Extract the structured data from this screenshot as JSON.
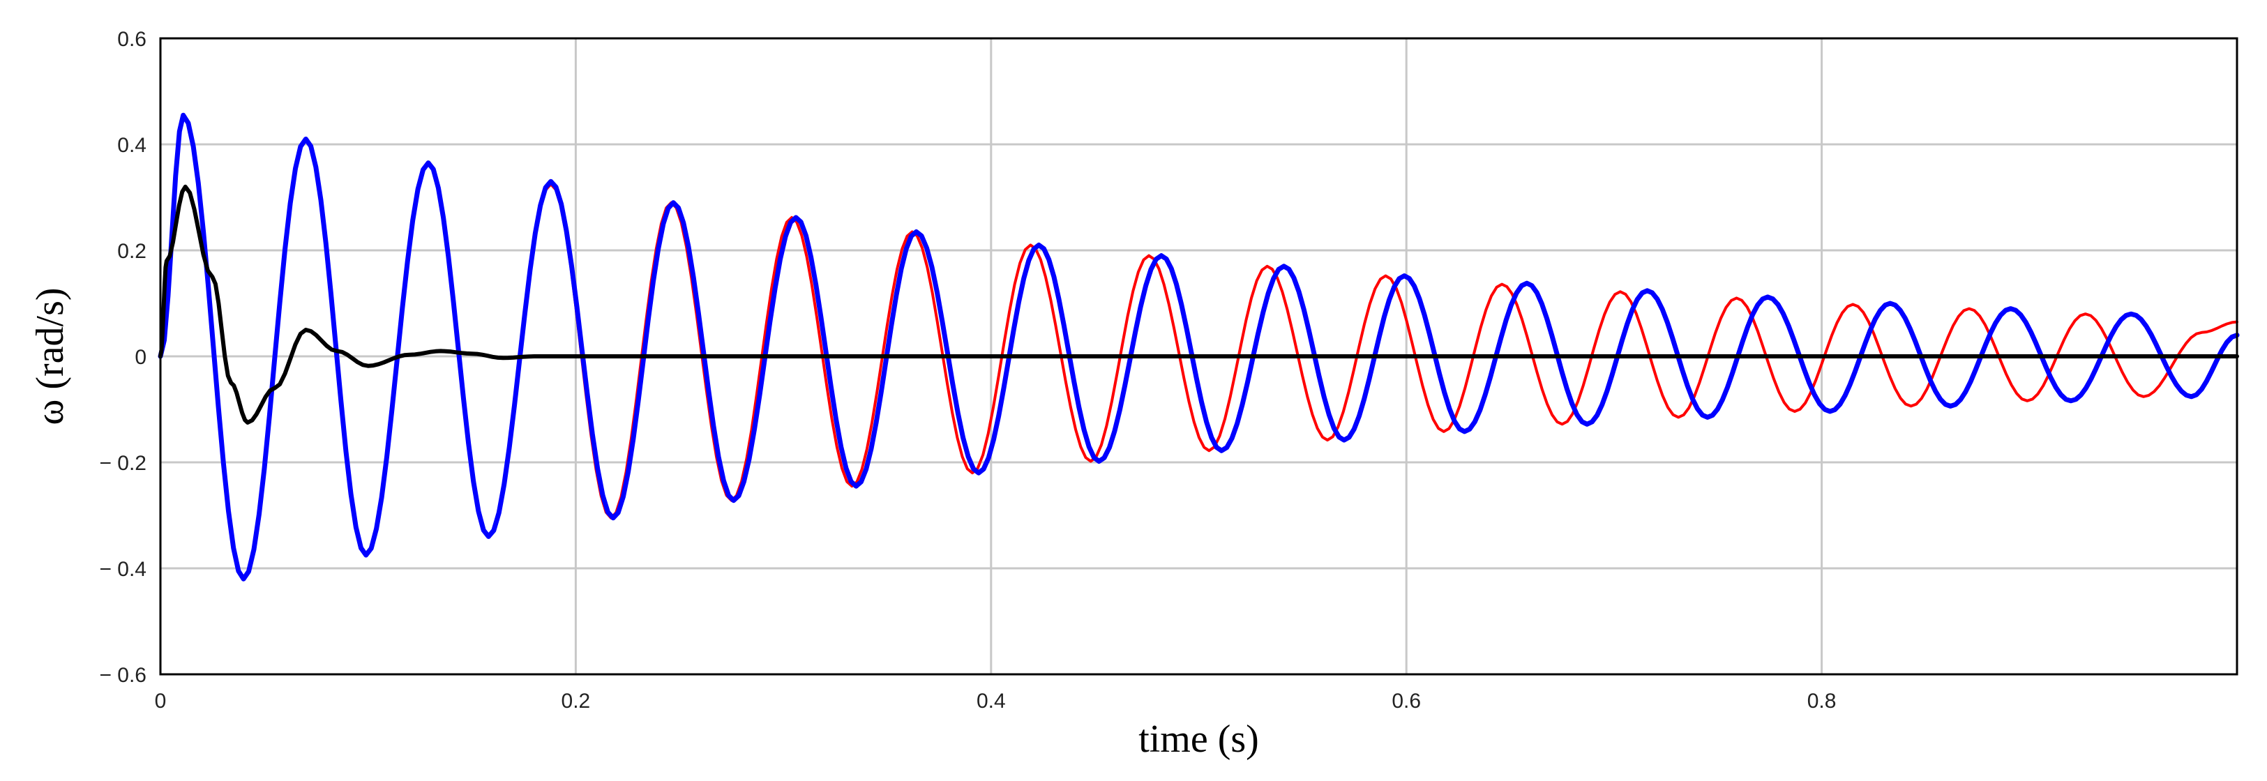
{
  "chart_data": {
    "type": "line",
    "title": "",
    "xlabel": "time (s)",
    "ylabel": "ω (rad/s)",
    "xlim": [
      0,
      1.0
    ],
    "ylim": [
      -0.6,
      0.6
    ],
    "grid": true,
    "x_ticks": [
      0,
      0.2,
      0.4,
      0.6,
      0.8
    ],
    "x_tick_labels": [
      "0",
      "0.2",
      "0.4",
      "0.6",
      "0.8"
    ],
    "y_ticks": [
      -0.6,
      -0.4,
      -0.2,
      0,
      0.2,
      0.4,
      0.6
    ],
    "y_tick_labels": [
      "− 0.6",
      "− 0.4",
      "− 0.2",
      "0",
      "0.2",
      "0.4",
      "0.6"
    ],
    "series": [
      {
        "color": "#ff0000",
        "points": [
          [
            0.0,
            0.0
          ],
          [
            0.011,
            0.455
          ],
          [
            0.04,
            -0.42
          ],
          [
            0.07,
            0.41
          ],
          [
            0.099,
            -0.375
          ],
          [
            0.129,
            0.365
          ],
          [
            0.158,
            -0.34
          ],
          [
            0.188,
            0.325
          ],
          [
            0.217,
            -0.305
          ],
          [
            0.246,
            0.29
          ],
          [
            0.275,
            -0.272
          ],
          [
            0.304,
            0.262
          ],
          [
            0.333,
            -0.245
          ],
          [
            0.362,
            0.235
          ],
          [
            0.391,
            -0.22
          ],
          [
            0.419,
            0.21
          ],
          [
            0.448,
            -0.198
          ],
          [
            0.476,
            0.19
          ],
          [
            0.505,
            -0.178
          ],
          [
            0.533,
            0.17
          ],
          [
            0.562,
            -0.158
          ],
          [
            0.59,
            0.152
          ],
          [
            0.618,
            -0.142
          ],
          [
            0.646,
            0.136
          ],
          [
            0.675,
            -0.128
          ],
          [
            0.703,
            0.122
          ],
          [
            0.731,
            -0.115
          ],
          [
            0.759,
            0.11
          ],
          [
            0.787,
            -0.104
          ],
          [
            0.815,
            0.098
          ],
          [
            0.843,
            -0.094
          ],
          [
            0.871,
            0.09
          ],
          [
            0.899,
            -0.084
          ],
          [
            0.927,
            0.08
          ],
          [
            0.955,
            -0.076
          ],
          [
            0.983,
            0.045
          ],
          [
            1.0,
            0.065
          ]
        ]
      },
      {
        "color": "#0000ff",
        "points": [
          [
            0.0,
            0.0
          ],
          [
            0.011,
            0.455
          ],
          [
            0.04,
            -0.42
          ],
          [
            0.07,
            0.41
          ],
          [
            0.099,
            -0.375
          ],
          [
            0.129,
            0.365
          ],
          [
            0.158,
            -0.34
          ],
          [
            0.188,
            0.33
          ],
          [
            0.218,
            -0.305
          ],
          [
            0.247,
            0.29
          ],
          [
            0.276,
            -0.272
          ],
          [
            0.306,
            0.262
          ],
          [
            0.335,
            -0.245
          ],
          [
            0.364,
            0.235
          ],
          [
            0.394,
            -0.22
          ],
          [
            0.423,
            0.21
          ],
          [
            0.452,
            -0.198
          ],
          [
            0.482,
            0.19
          ],
          [
            0.511,
            -0.178
          ],
          [
            0.541,
            0.17
          ],
          [
            0.57,
            -0.158
          ],
          [
            0.599,
            0.152
          ],
          [
            0.628,
            -0.142
          ],
          [
            0.658,
            0.138
          ],
          [
            0.687,
            -0.128
          ],
          [
            0.716,
            0.124
          ],
          [
            0.745,
            -0.115
          ],
          [
            0.774,
            0.112
          ],
          [
            0.804,
            -0.104
          ],
          [
            0.833,
            0.1
          ],
          [
            0.862,
            -0.094
          ],
          [
            0.891,
            0.09
          ],
          [
            0.92,
            -0.084
          ],
          [
            0.949,
            0.08
          ],
          [
            0.978,
            -0.076
          ],
          [
            1.0,
            0.04
          ]
        ]
      },
      {
        "color": "#000000",
        "points": [
          [
            0.0,
            0.0
          ],
          [
            0.003,
            0.18
          ],
          [
            0.012,
            0.32
          ],
          [
            0.025,
            0.15
          ],
          [
            0.034,
            -0.05
          ],
          [
            0.042,
            -0.125
          ],
          [
            0.055,
            -0.06
          ],
          [
            0.07,
            0.05
          ],
          [
            0.085,
            0.01
          ],
          [
            0.1,
            -0.018
          ],
          [
            0.12,
            0.003
          ],
          [
            0.135,
            0.01
          ],
          [
            0.15,
            0.005
          ],
          [
            0.165,
            -0.003
          ],
          [
            0.18,
            0.0
          ],
          [
            1.0,
            0.0
          ]
        ]
      }
    ]
  }
}
